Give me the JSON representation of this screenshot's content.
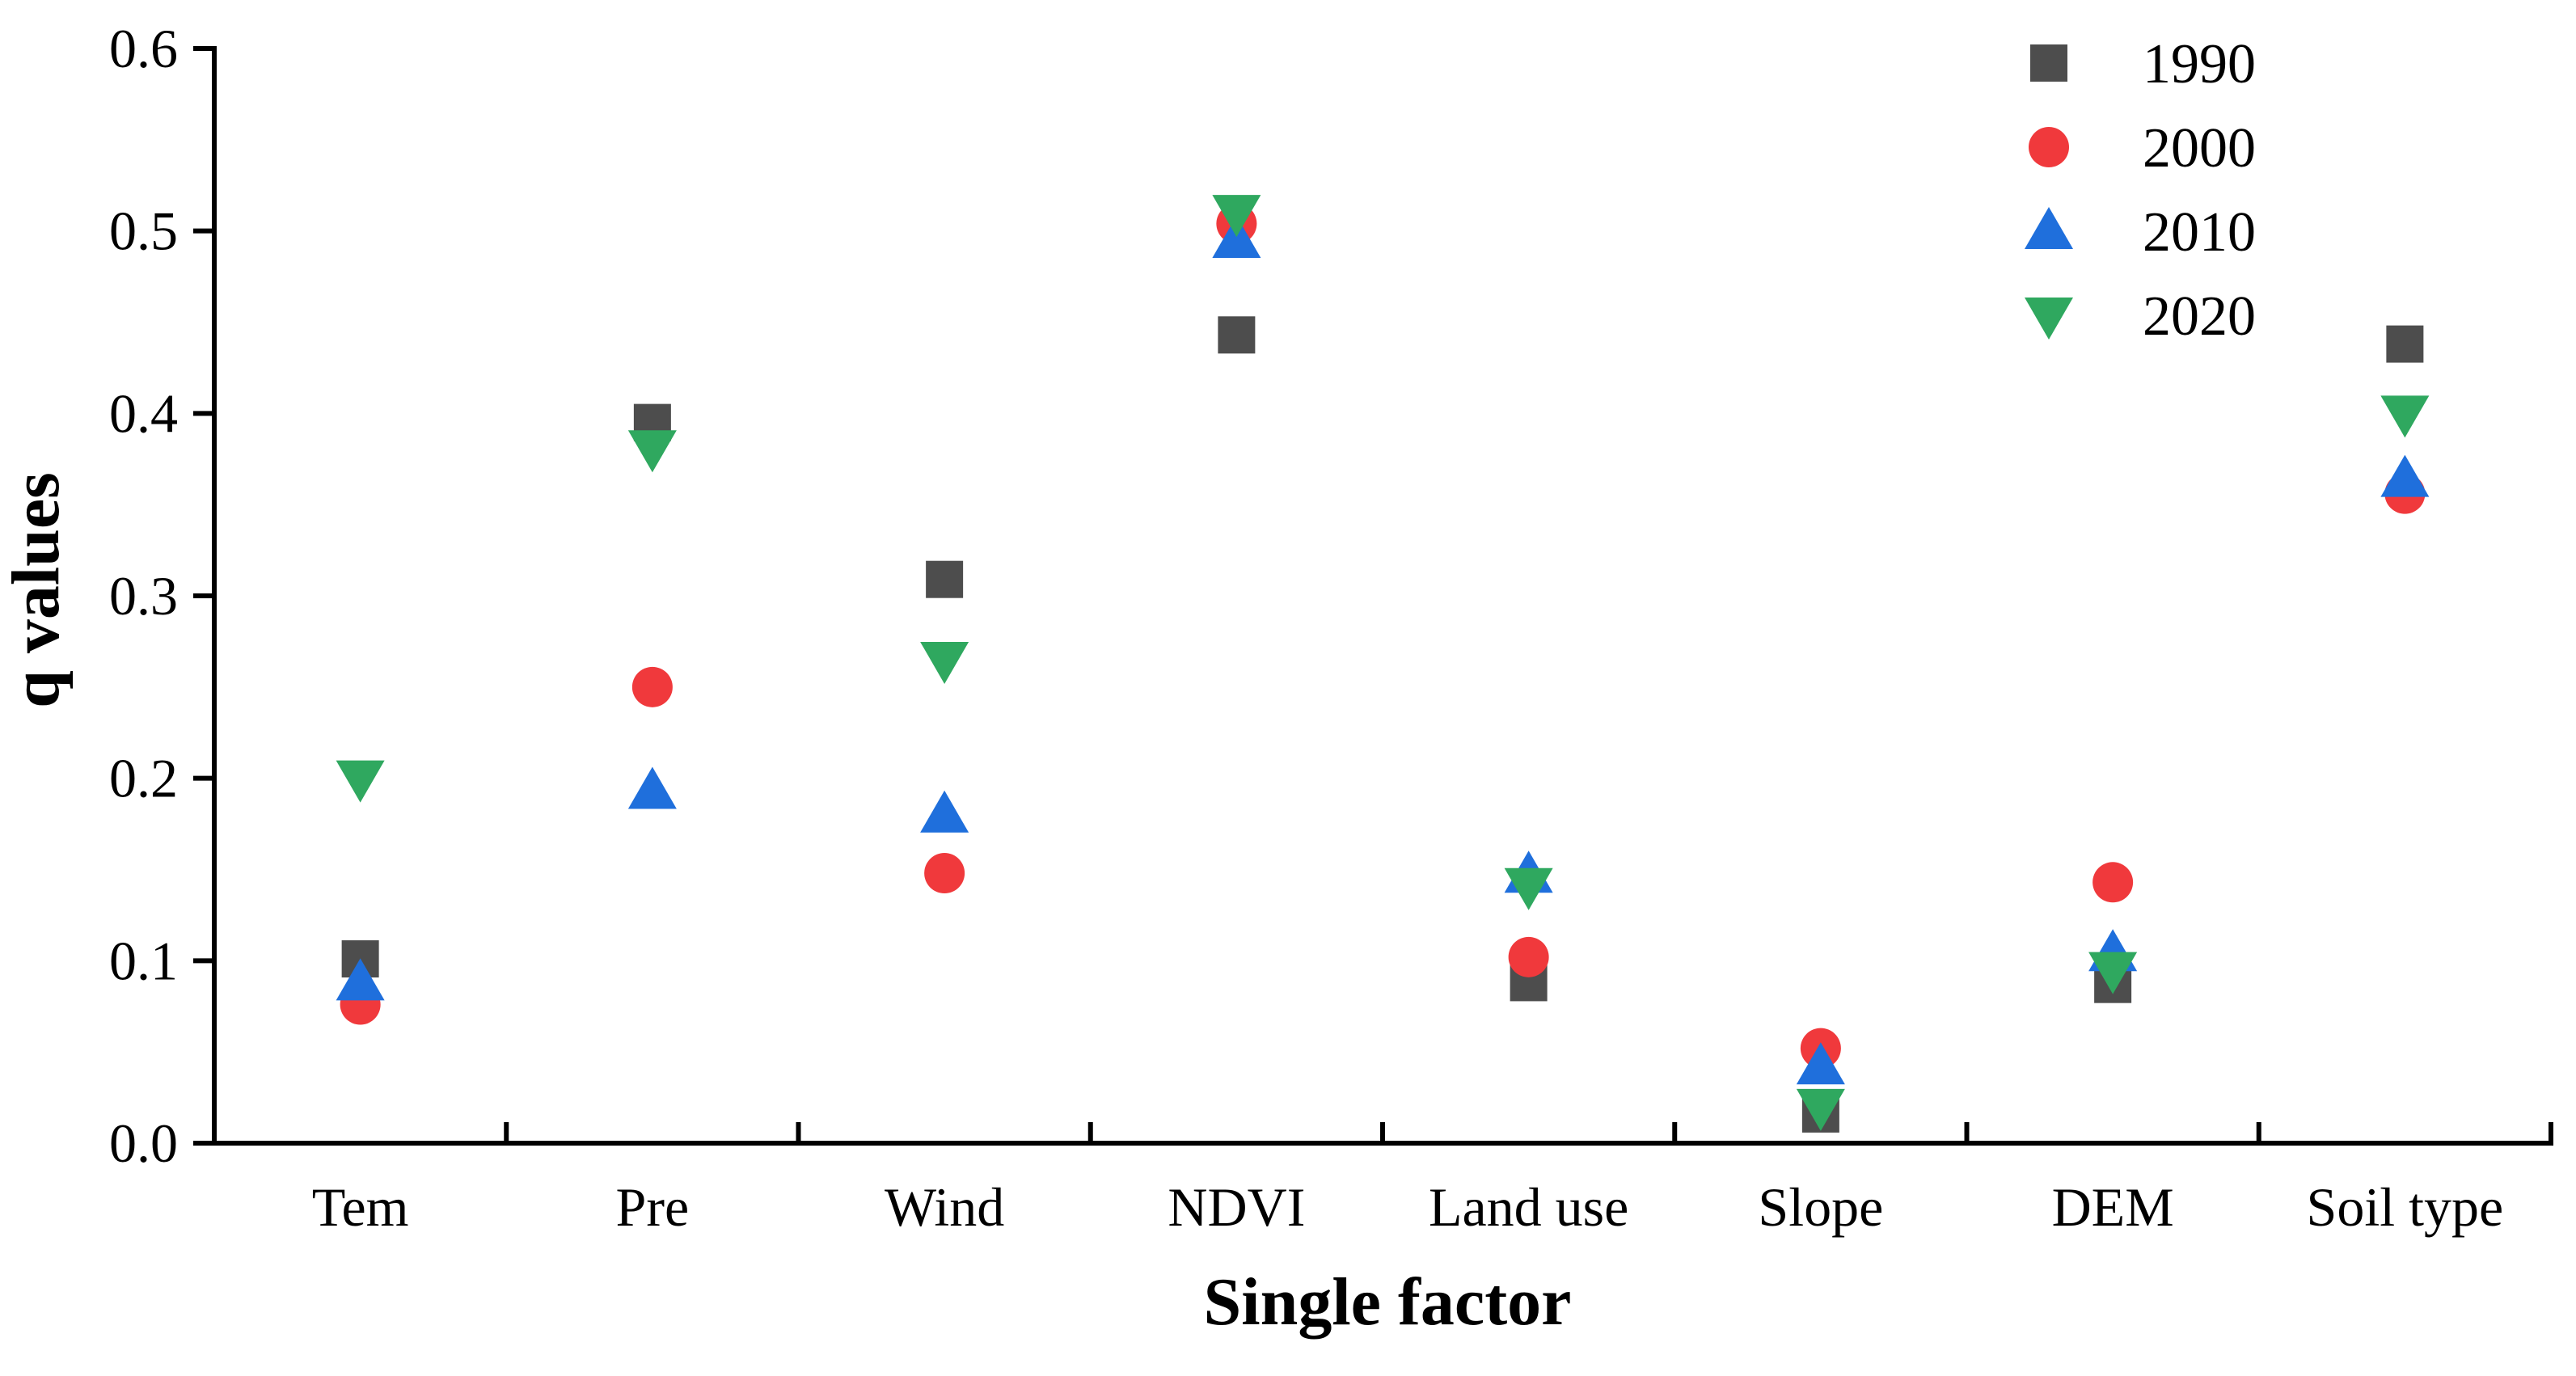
{
  "chart_data": {
    "type": "scatter",
    "title": "",
    "xlabel": "Single factor",
    "ylabel": "q values",
    "categories": [
      "Tem",
      "Pre",
      "Wind",
      "NDVI",
      "Land use",
      "Slope",
      "DEM",
      "Soil type"
    ],
    "ylim": [
      0.0,
      0.6
    ],
    "yticks": [
      0.0,
      0.1,
      0.2,
      0.3,
      0.4,
      0.5,
      0.6
    ],
    "ytick_labels": [
      "0.0",
      "0.1",
      "0.2",
      "0.3",
      "0.4",
      "0.5",
      "0.6"
    ],
    "grid": false,
    "legend_position": "top-right",
    "series": [
      {
        "name": "1990",
        "marker": "square",
        "color": "#4d4d4d",
        "values": [
          0.101,
          0.395,
          0.309,
          0.443,
          0.088,
          0.016,
          0.087,
          0.438
        ]
      },
      {
        "name": "2000",
        "marker": "circle",
        "color": "#f0393c",
        "values": [
          0.076,
          0.25,
          0.148,
          0.504,
          0.102,
          0.052,
          0.143,
          0.356
        ]
      },
      {
        "name": "2010",
        "marker": "triangle-up",
        "color": "#1f6fdc",
        "values": [
          0.088,
          0.193,
          0.18,
          0.495,
          0.147,
          0.042,
          0.104,
          0.364
        ]
      },
      {
        "name": "2020",
        "marker": "triangle-down",
        "color": "#2fa85f",
        "values": [
          0.2,
          0.381,
          0.265,
          0.51,
          0.141,
          0.02,
          0.095,
          0.4
        ]
      }
    ]
  }
}
